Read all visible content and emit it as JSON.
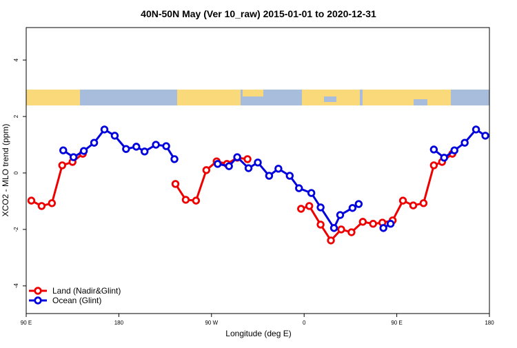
{
  "chart_data": {
    "type": "line",
    "title": "40N-50N May (Ver 10_raw)   2015-01-01 to 2020-12-31",
    "x_label": "Longitude (deg E)",
    "y_label": "XCO2 - MLO trend (ppm)",
    "xlim": [
      90,
      540
    ],
    "ylim": [
      -4.98,
      5.15
    ],
    "xticks": [
      {
        "value": 90,
        "label": "90 E"
      },
      180,
      {
        "value": 270,
        "label": "90 W"
      },
      {
        "value": 360,
        "label": "0"
      },
      {
        "value": 450,
        "label": "90 E"
      },
      {
        "value": 540,
        "label": "180"
      }
    ],
    "yticks": [
      -4,
      -2,
      0,
      2,
      4
    ],
    "legend": "bottom-left",
    "series": [
      {
        "name": "Land (Nadir&Glint)",
        "color": "#ee0000",
        "x": [
          95,
          105,
          115,
          125,
          135,
          145,
          null,
          235,
          245,
          255,
          265,
          275,
          285,
          295,
          305,
          null,
          357,
          365,
          376,
          386,
          396,
          406,
          417,
          427,
          436,
          446,
          456,
          466,
          476,
          486,
          494,
          504
        ],
        "values": [
          -0.98,
          -1.17,
          -1.07,
          0.27,
          0.39,
          0.68,
          null,
          -0.39,
          -0.95,
          -0.98,
          0.1,
          0.41,
          0.32,
          0.54,
          0.49,
          null,
          -1.27,
          -1.17,
          -1.83,
          -2.39,
          -2.0,
          -2.1,
          -1.73,
          -1.8,
          -1.76,
          -1.68,
          -0.98,
          -1.15,
          -1.07,
          0.27,
          0.39,
          0.68
        ]
      },
      {
        "name": "Ocean (Glint)",
        "color": "#0000dd",
        "x": [
          126,
          136,
          146,
          156,
          166,
          176,
          187,
          197,
          205,
          216,
          226,
          234,
          null,
          276,
          287,
          295,
          306,
          315,
          326,
          335,
          346,
          355,
          367,
          376,
          389,
          395,
          407,
          413,
          null,
          437,
          444,
          null,
          486,
          496,
          506,
          516,
          527,
          536
        ],
        "values": [
          0.8,
          0.56,
          0.78,
          1.07,
          1.54,
          1.32,
          0.85,
          0.93,
          0.76,
          1.0,
          0.95,
          0.49,
          null,
          0.32,
          0.24,
          0.56,
          0.17,
          0.37,
          -0.1,
          0.15,
          -0.1,
          -0.54,
          -0.71,
          -1.22,
          -1.95,
          -1.49,
          -1.24,
          -1.1,
          null,
          -1.95,
          -1.8,
          null,
          0.83,
          0.54,
          0.8,
          1.07,
          1.54,
          1.32
        ]
      }
    ]
  }
}
